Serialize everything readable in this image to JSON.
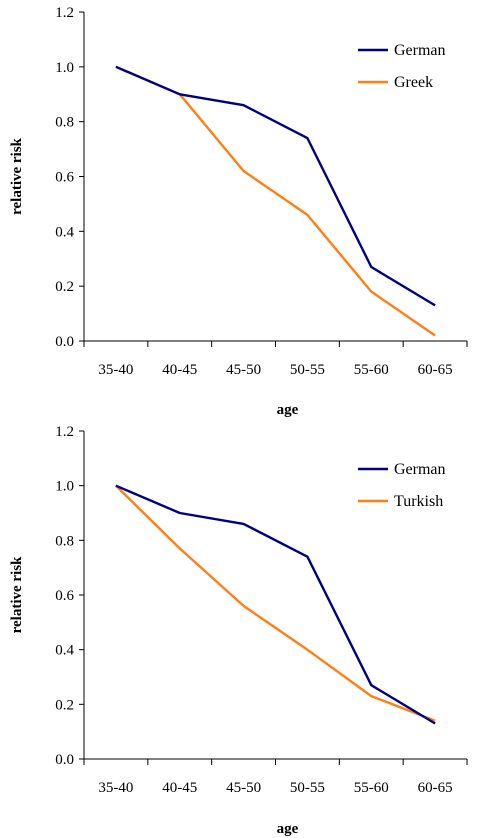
{
  "chart_data": [
    {
      "type": "line",
      "categories": [
        "35-40",
        "40-45",
        "45-50",
        "50-55",
        "55-60",
        "60-65"
      ],
      "xlabel": "age",
      "ylabel": "relative risk",
      "ylim": [
        0,
        1.2
      ],
      "yticks": [
        "0.0",
        "0.2",
        "0.4",
        "0.6",
        "0.8",
        "1.0",
        "1.2"
      ],
      "grid": false,
      "legend_position": "top-right",
      "series": [
        {
          "name": "German",
          "values": [
            1.0,
            0.9,
            0.86,
            0.74,
            0.27,
            0.13
          ],
          "color": "#000080"
        },
        {
          "name": "Greek",
          "values": [
            1.0,
            0.9,
            0.62,
            0.46,
            0.18,
            0.02
          ],
          "color": "#FF7F17"
        }
      ]
    },
    {
      "type": "line",
      "categories": [
        "35-40",
        "40-45",
        "45-50",
        "50-55",
        "55-60",
        "60-65"
      ],
      "xlabel": "age",
      "ylabel": "relative risk",
      "ylim": [
        0,
        1.2
      ],
      "yticks": [
        "0.0",
        "0.2",
        "0.4",
        "0.6",
        "0.8",
        "1.0",
        "1.2"
      ],
      "grid": false,
      "legend_position": "top-right",
      "series": [
        {
          "name": "German",
          "values": [
            1.0,
            0.9,
            0.86,
            0.74,
            0.27,
            0.13
          ],
          "color": "#000080"
        },
        {
          "name": "Turkish",
          "values": [
            1.0,
            0.77,
            0.56,
            0.4,
            0.23,
            0.14
          ],
          "color": "#FF7F17"
        }
      ]
    }
  ]
}
